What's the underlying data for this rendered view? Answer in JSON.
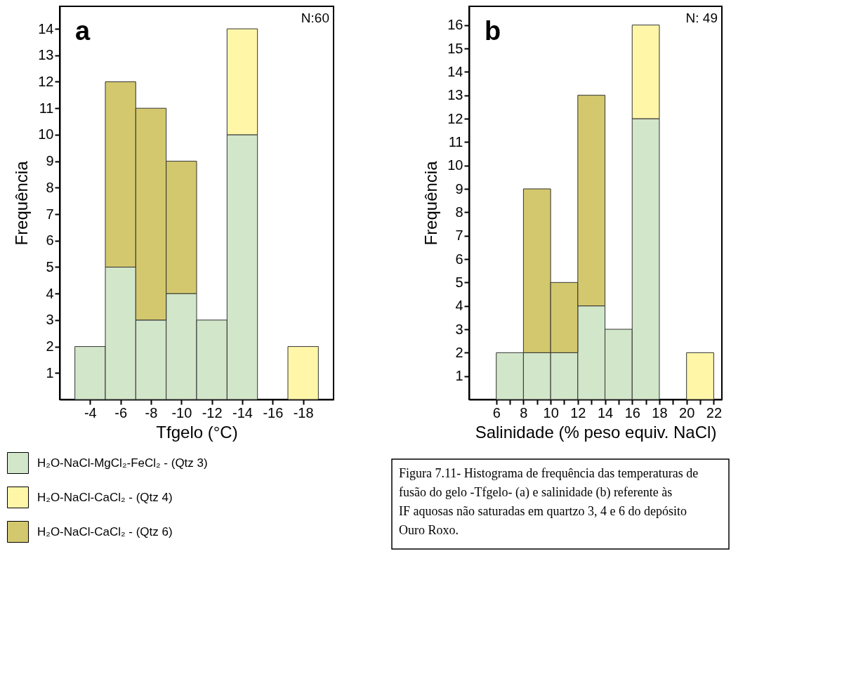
{
  "chart_data": [
    {
      "type": "bar",
      "stacked": true,
      "xlabel": "Tfgelo (°C)",
      "ylabel": "Frequência",
      "x": [
        -4,
        -6,
        -8,
        -10,
        -12,
        -14,
        -16,
        -18
      ],
      "series": [
        {
          "name": "H₂O-NaCl-MgCl₂-FeCl₂ - (Qtz 3)",
          "color": "#d2e6ca",
          "values": [
            2,
            5,
            3,
            4,
            3,
            10,
            0,
            0
          ]
        },
        {
          "name": "H₂O-NaCl-CaCl₂ - (Qtz 4)",
          "color": "#fff6a8",
          "values": [
            0,
            0,
            0,
            0,
            0,
            4,
            0,
            2
          ]
        },
        {
          "name": "H₂O-NaCl-CaCl₂ - (Qtz 6)",
          "color": "#d3c86d",
          "values": [
            0,
            7,
            8,
            5,
            0,
            0,
            0,
            0
          ]
        }
      ],
      "xlim": [
        -2,
        -20
      ],
      "xticks": [
        -4,
        -6,
        -8,
        -10,
        -12,
        -14,
        -16,
        -18
      ],
      "ylim": [
        0,
        14.85
      ],
      "yticks": [
        1,
        2,
        3,
        4,
        5,
        6,
        7,
        8,
        9,
        10,
        11,
        12,
        13,
        14
      ],
      "grid": false,
      "legend": "bottom left",
      "annotations": [
        "a",
        "N:60"
      ]
    },
    {
      "type": "bar",
      "stacked": true,
      "xlabel": "Salinidade (% peso equiv. NaCl)",
      "ylabel": "Frequência",
      "x": [
        7,
        9,
        11,
        13,
        15,
        17,
        19,
        21
      ],
      "series": [
        {
          "color": "#d2e6ca",
          "values": [
            2,
            2,
            2,
            4,
            3,
            12,
            0,
            0
          ]
        },
        {
          "color": "#fff6a8",
          "values": [
            0,
            0,
            0,
            0,
            0,
            4,
            0,
            2
          ]
        },
        {
          "color": "#d3c86d",
          "values": [
            0,
            7,
            3,
            9,
            0,
            0,
            0,
            0
          ]
        }
      ],
      "xlim": [
        4,
        22.6
      ],
      "xticks": [
        6,
        {
          "value": 7,
          "label": null
        },
        8,
        {
          "value": 9,
          "label": null
        },
        10,
        {
          "value": 11,
          "label": null
        },
        12,
        {
          "value": 13,
          "label": null
        },
        14,
        {
          "value": 15,
          "label": null
        },
        16,
        {
          "value": 17,
          "label": null
        },
        18,
        {
          "value": 19,
          "label": null
        },
        20,
        {
          "value": 21,
          "label": null
        },
        22
      ],
      "ylim": [
        0,
        16.8
      ],
      "yticks": [
        1,
        2,
        3,
        4,
        5,
        6,
        7,
        8,
        9,
        10,
        11,
        12,
        13,
        14,
        15,
        16
      ],
      "grid": false,
      "annotations": [
        "b",
        "N: 49",
        "Figura 7.11- Histograma de frequência das temperaturas de fusão do gelo -Tfgelo- (a) e salinidade (b) referente às IF aquosas não saturadas em quartzo 3, 4 e 6 do depósito Ouro Roxo."
      ]
    }
  ]
}
